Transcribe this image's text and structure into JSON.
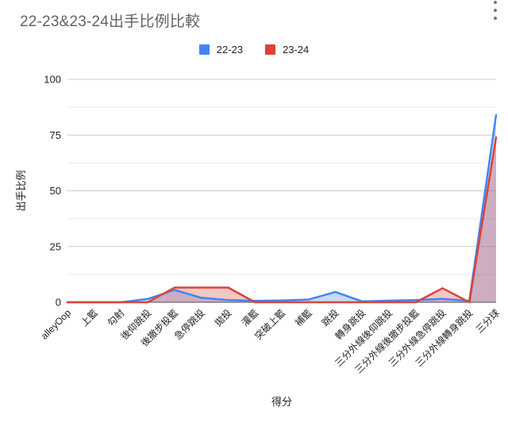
{
  "header": {
    "title": "22-23&23-24出手比例比較",
    "menu_icon": "kebab-menu"
  },
  "chart_data": {
    "type": "area",
    "title": "22-23&23-24出手比例比較",
    "xlabel": "得分",
    "ylabel": "出手比例",
    "ylim": [
      0,
      100
    ],
    "y_ticks": [
      0,
      25,
      50,
      75,
      100
    ],
    "y_minor_ticks": [
      12.5,
      37.5,
      62.5,
      87.5
    ],
    "grid": true,
    "legend_position": "top",
    "categories": [
      "alleyOop",
      "上籃",
      "勾射",
      "後仰跳投",
      "後撤步投籃",
      "急停跳投",
      "拋投",
      "灌籃",
      "突破上籃",
      "補籃",
      "跳投",
      "轉身跳投",
      "三分外線後仰跳投",
      "三分外線後撤步投籃",
      "三分外線急停跳投",
      "三分外線轉身跳投",
      "三分球"
    ],
    "series": [
      {
        "name": "22-23",
        "color": "#4285F4",
        "fill_opacity": 0.3,
        "values": [
          0,
          0,
          0,
          1.5,
          5.5,
          2,
          1,
          0.6,
          0.8,
          1.2,
          4.6,
          0.4,
          0.7,
          1,
          1.5,
          0.6,
          84
        ]
      },
      {
        "name": "23-24",
        "color": "#DB4437",
        "fill_opacity": 0.3,
        "values": [
          0,
          0,
          0,
          0,
          6.6,
          6.6,
          6.6,
          0,
          0,
          0,
          0,
          0,
          0,
          0,
          6.3,
          0,
          74
        ]
      }
    ],
    "colors": {
      "major_gridline": "#cccccc",
      "minor_gridline": "#ebebeb",
      "baseline": "#666666",
      "tick_label": "#222222",
      "axis_title": "#222222"
    }
  }
}
